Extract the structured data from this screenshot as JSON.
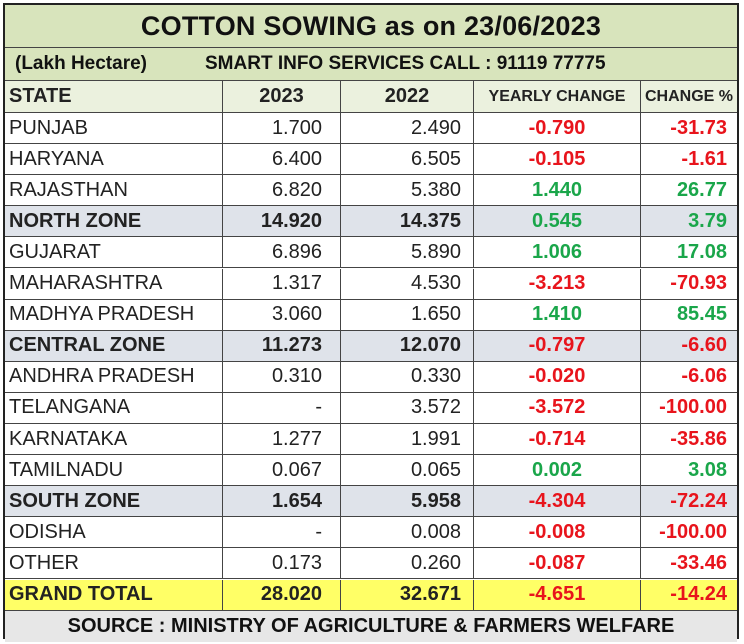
{
  "title": "COTTON SOWING  as on 23/06/2023",
  "unit": "(Lakh Hectare)",
  "contact": "SMART INFO SERVICES CALL : 91119 77775",
  "headers": [
    "STATE",
    "2023",
    "2022",
    "YEARLY CHANGE",
    "CHANGE %"
  ],
  "rows": [
    {
      "state": "PUNJAB",
      "y2023": "1.700",
      "y2022": "2.490",
      "change": "-0.790",
      "pct": "-31.73",
      "type": "state"
    },
    {
      "state": "HARYANA",
      "y2023": "6.400",
      "y2022": "6.505",
      "change": "-0.105",
      "pct": "-1.61",
      "type": "state"
    },
    {
      "state": "RAJASTHAN",
      "y2023": "6.820",
      "y2022": "5.380",
      "change": "1.440",
      "pct": "26.77",
      "type": "state"
    },
    {
      "state": "NORTH ZONE",
      "y2023": "14.920",
      "y2022": "14.375",
      "change": "0.545",
      "pct": "3.79",
      "type": "zone"
    },
    {
      "state": "GUJARAT",
      "y2023": "6.896",
      "y2022": "5.890",
      "change": "1.006",
      "pct": "17.08",
      "type": "state"
    },
    {
      "state": "MAHARASHTRA",
      "y2023": "1.317",
      "y2022": "4.530",
      "change": "-3.213",
      "pct": "-70.93",
      "type": "state"
    },
    {
      "state": "MADHYA PRADESH",
      "y2023": "3.060",
      "y2022": "1.650",
      "change": "1.410",
      "pct": "85.45",
      "type": "state"
    },
    {
      "state": "CENTRAL ZONE",
      "y2023": "11.273",
      "y2022": "12.070",
      "change": "-0.797",
      "pct": "-6.60",
      "type": "zone"
    },
    {
      "state": "ANDHRA PRADESH",
      "y2023": "0.310",
      "y2022": "0.330",
      "change": "-0.020",
      "pct": "-6.06",
      "type": "state"
    },
    {
      "state": "TELANGANA",
      "y2023": "-",
      "y2022": "3.572",
      "change": "-3.572",
      "pct": "-100.00",
      "type": "state"
    },
    {
      "state": "KARNATAKA",
      "y2023": "1.277",
      "y2022": "1.991",
      "change": "-0.714",
      "pct": "-35.86",
      "type": "state"
    },
    {
      "state": "TAMILNADU",
      "y2023": "0.067",
      "y2022": "0.065",
      "change": "0.002",
      "pct": "3.08",
      "type": "state"
    },
    {
      "state": "SOUTH ZONE",
      "y2023": "1.654",
      "y2022": "5.958",
      "change": "-4.304",
      "pct": "-72.24",
      "type": "zone"
    },
    {
      "state": "ODISHA",
      "y2023": "-",
      "y2022": "0.008",
      "change": "-0.008",
      "pct": "-100.00",
      "type": "state"
    },
    {
      "state": "OTHER",
      "y2023": "0.173",
      "y2022": "0.260",
      "change": "-0.087",
      "pct": "-33.46",
      "type": "state"
    },
    {
      "state": "GRAND TOTAL",
      "y2023": "28.020",
      "y2022": "32.671",
      "change": "-4.651",
      "pct": "-14.24",
      "type": "total"
    }
  ],
  "source": "SOURCE : MINISTRY OF AGRICULTURE & FARMERS WELFARE",
  "colors": {
    "negative": "#e8141c",
    "positive": "#1aa64a",
    "title_bg": "#d8e4bc",
    "zone_bg": "#dfe3ea",
    "total_bg": "#ffff66"
  }
}
